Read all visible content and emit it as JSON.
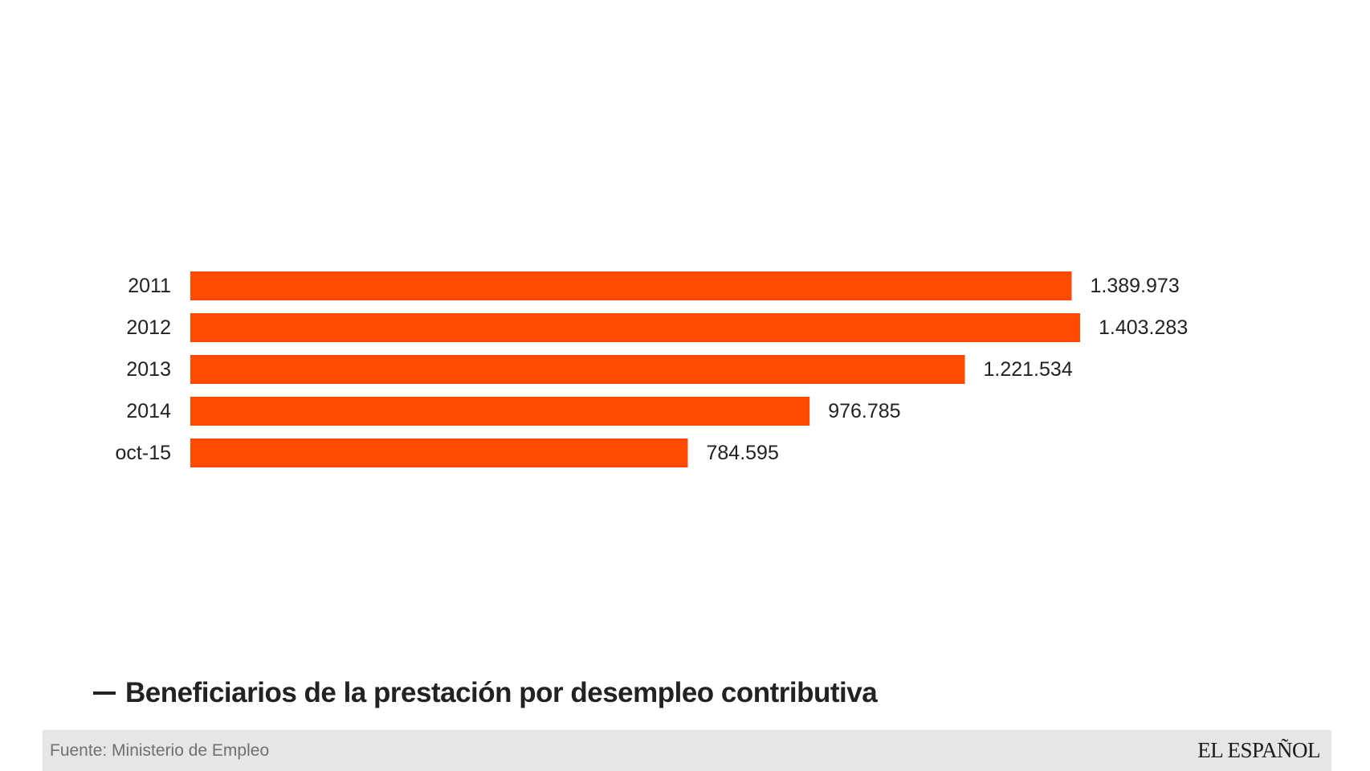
{
  "chart_data": {
    "type": "bar",
    "orientation": "horizontal",
    "categories": [
      "2011",
      "2012",
      "2013",
      "2014",
      "oct-15"
    ],
    "values": [
      1389973,
      1403283,
      1221534,
      976785,
      784595
    ],
    "value_labels": [
      "1.389.973",
      "1.403.283",
      "1.221.534",
      "976.785",
      "784.595"
    ],
    "series": [
      {
        "name": "Beneficiarios de la prestación por desempleo contributiva",
        "values": [
          1389973,
          1403283,
          1221534,
          976785,
          784595
        ]
      }
    ],
    "xlim": [
      0,
      1403283
    ],
    "bar_color": "#ff4a00",
    "legend_position": "bottom-left",
    "grid": false
  },
  "legend": {
    "label": "Beneficiarios de la prestación por desempleo contributiva"
  },
  "footer": {
    "source": "Fuente: Ministerio de Empleo",
    "brand": "EL ESPAÑOL"
  }
}
